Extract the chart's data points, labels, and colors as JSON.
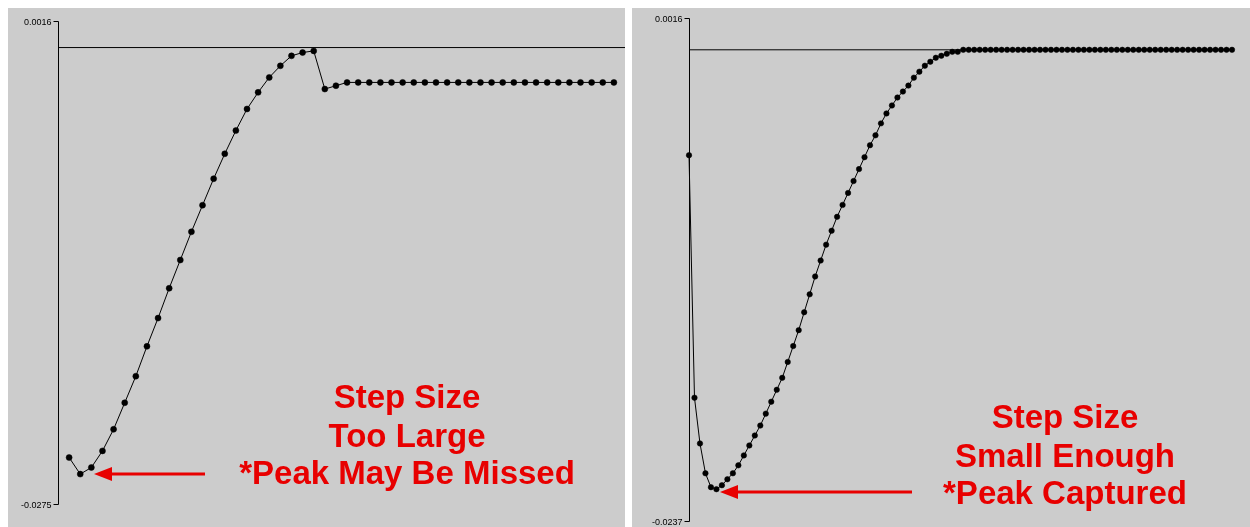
{
  "chart_data": [
    {
      "type": "line",
      "categories": [
        null,
        null,
        null,
        null,
        null,
        null,
        null,
        null,
        null,
        null,
        null,
        null,
        null,
        null,
        null,
        null,
        null,
        null,
        null,
        null,
        null,
        null,
        null,
        null,
        null,
        null,
        null,
        null,
        null,
        null,
        null,
        null,
        null,
        null,
        null,
        null,
        null,
        null,
        null,
        null,
        null,
        null,
        null,
        null,
        null,
        null,
        null,
        null,
        null,
        null
      ],
      "series": [
        {
          "color": "#000000",
          "values": [
            -0.0247,
            -0.0257,
            -0.0253,
            -0.0243,
            -0.023,
            -0.0214,
            -0.0198,
            -0.018,
            -0.0163,
            -0.0145,
            -0.0128,
            -0.0111,
            -0.0095,
            -0.0079,
            -0.0064,
            -0.005,
            -0.0037,
            -0.0027,
            -0.0018,
            -0.0011,
            -0.0005,
            -0.0003,
            -0.0002,
            -0.0025,
            -0.0023,
            -0.0021,
            -0.0021,
            -0.0021,
            -0.0021,
            -0.0021,
            -0.0021,
            -0.0021,
            -0.0021,
            -0.0021,
            -0.0021,
            -0.0021,
            -0.0021,
            -0.0021,
            -0.0021,
            -0.0021,
            -0.0021,
            -0.0021,
            -0.0021,
            -0.0021,
            -0.0021,
            -0.0021,
            -0.0021,
            -0.0021,
            -0.0021,
            -0.0021
          ]
        }
      ],
      "ylim": [
        -0.0275,
        0.0016
      ],
      "yticks": [
        0.0016,
        -0.0275
      ],
      "ref_lines": [
        {
          "axis": "y",
          "value": 0
        }
      ],
      "marker": "circle",
      "tick_labels": "y",
      "annotations": [
        "Step Size",
        "Too Large",
        "*Peak May Be Missed"
      ]
    },
    {
      "type": "line",
      "categories": [
        null,
        null,
        null,
        null,
        null,
        null,
        null,
        null,
        null,
        null,
        null,
        null,
        null,
        null,
        null,
        null,
        null,
        null,
        null,
        null,
        null,
        null,
        null,
        null,
        null,
        null,
        null,
        null,
        null,
        null,
        null,
        null,
        null,
        null,
        null,
        null,
        null,
        null,
        null,
        null,
        null,
        null,
        null,
        null,
        null,
        null,
        null,
        null,
        null,
        null,
        null,
        null,
        null,
        null,
        null,
        null,
        null,
        null,
        null,
        null,
        null,
        null,
        null,
        null,
        null,
        null,
        null,
        null,
        null,
        null,
        null,
        null,
        null,
        null,
        null,
        null,
        null,
        null,
        null,
        null,
        null,
        null,
        null,
        null,
        null,
        null,
        null,
        null,
        null,
        null,
        null,
        null,
        null,
        null,
        null,
        null,
        null,
        null,
        null,
        null
      ],
      "series": [
        {
          "color": "#000000",
          "values": [
            -0.0053,
            -0.0175,
            -0.0198,
            -0.0213,
            -0.022,
            -0.0221,
            -0.0219,
            -0.0216,
            -0.0213,
            -0.0209,
            -0.0204,
            -0.0199,
            -0.0194,
            -0.0189,
            -0.0183,
            -0.0177,
            -0.0171,
            -0.0165,
            -0.0157,
            -0.0149,
            -0.0141,
            -0.0132,
            -0.0123,
            -0.0114,
            -0.0106,
            -0.0098,
            -0.0091,
            -0.0084,
            -0.0078,
            -0.0072,
            -0.0066,
            -0.006,
            -0.0054,
            -0.0048,
            -0.0043,
            -0.0037,
            -0.0032,
            -0.0028,
            -0.0024,
            -0.0021,
            -0.0018,
            -0.0014,
            -0.0011,
            -0.0008,
            -0.0006,
            -0.0004,
            -0.0003,
            -0.0002,
            -0.0001,
            -0.0001,
            0,
            0,
            0,
            0,
            0,
            0,
            0,
            0,
            0,
            0,
            0,
            0,
            0,
            0,
            0,
            0,
            0,
            0,
            0,
            0,
            0,
            0,
            0,
            0,
            0,
            0,
            0,
            0,
            0,
            0,
            0,
            0,
            0,
            0,
            0,
            0,
            0,
            0,
            0,
            0,
            0,
            0,
            0,
            0,
            0,
            0,
            0,
            0,
            0,
            0
          ]
        }
      ],
      "ylim": [
        -0.0237,
        0.0016
      ],
      "yticks": [
        0.0016,
        -0.0237
      ],
      "ref_lines": [
        {
          "axis": "y",
          "value": 0
        }
      ],
      "marker": "circle",
      "tick_labels": "y",
      "annotations": [
        "Step Size",
        "Small Enough",
        "*Peak Captured"
      ]
    }
  ]
}
